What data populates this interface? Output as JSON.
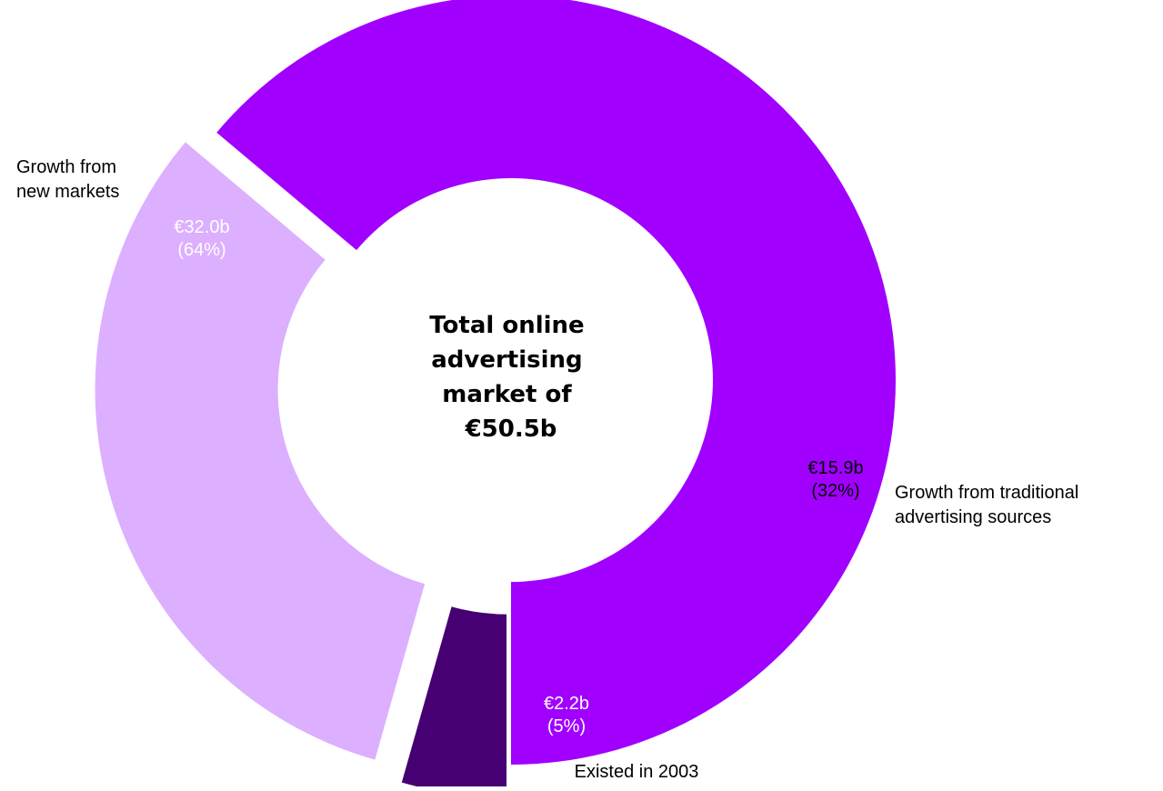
{
  "chart_data": {
    "type": "pie",
    "variant": "donut",
    "center_text": [
      "Total online",
      "advertising",
      "market of",
      "€50.5b"
    ],
    "slices": [
      {
        "category": "Existed in 2003",
        "category_lines": [
          "Existed in 2003"
        ],
        "value": 2.2,
        "unit": "€b",
        "percent": 5,
        "value_label": "€2.2b",
        "percent_label": "(5%)",
        "color": "#460073",
        "label_color": "#ffffff",
        "exploded": true
      },
      {
        "category": "Growth from traditional advertising sources",
        "category_lines": [
          "Growth from traditional",
          "advertising sources"
        ],
        "value": 15.9,
        "unit": "€b",
        "percent": 32,
        "value_label": "€15.9b",
        "percent_label": "(32%)",
        "color": "#dcafff",
        "label_color": "#000000",
        "exploded": true
      },
      {
        "category": "Growth from new markets",
        "category_lines": [
          "Growth from",
          "new markets"
        ],
        "value": 32.0,
        "unit": "€b",
        "percent": 64,
        "value_label": "€32.0b",
        "percent_label": "(64%)",
        "color": "#a100ff",
        "label_color": "#ffffff",
        "exploded": false
      }
    ],
    "legend": "none",
    "grid": false
  }
}
